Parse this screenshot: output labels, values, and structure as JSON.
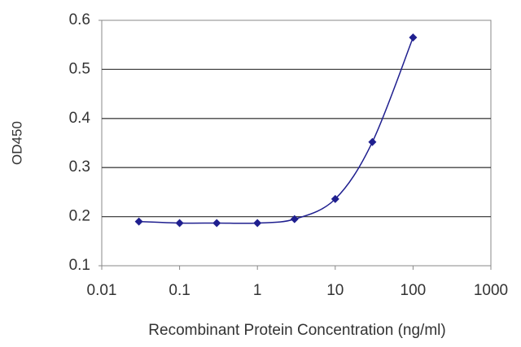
{
  "chart_data": {
    "type": "line",
    "x_label": "Recombinant Protein Concentration (ng/ml)",
    "y_label": "OD450",
    "x": [
      0.03,
      0.1,
      0.3,
      1,
      3,
      10,
      30,
      100
    ],
    "series": [
      {
        "color": "#1f1f8f",
        "values": [
          0.19,
          0.187,
          0.187,
          0.187,
          0.195,
          0.236,
          0.352,
          0.565
        ]
      }
    ],
    "xscale": "log",
    "xlim": [
      0.01,
      1000
    ],
    "xticks": [
      0.01,
      0.1,
      1,
      10,
      100,
      1000
    ],
    "ylim": [
      0.1,
      0.6
    ],
    "yticks": [
      0.1,
      0.2,
      0.3,
      0.4,
      0.5,
      0.6
    ],
    "grid": true
  }
}
